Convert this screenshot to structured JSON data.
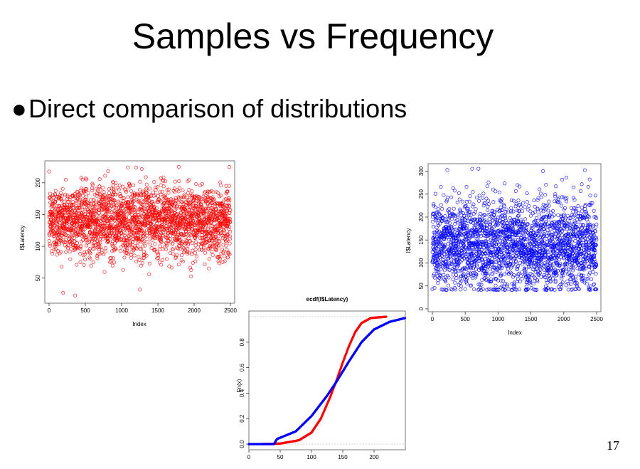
{
  "slide": {
    "title": "Samples vs Frequency",
    "bullet_symbol": "●",
    "bullet_text": "Direct comparison of distributions",
    "page_number": "17"
  },
  "chart_data": [
    {
      "type": "scatter",
      "series": [
        {
          "color": "#ff0000",
          "marker": "open-circle",
          "n": 2500,
          "center": 140,
          "spread": 28,
          "range": [
            20,
            225
          ]
        }
      ],
      "xlabel": "Index",
      "ylabel": "I$Latency",
      "xlim": [
        0,
        2500
      ],
      "ylim": [
        15,
        230
      ],
      "xticks": [
        "0",
        "500",
        "1000",
        "1500",
        "2000",
        "2500"
      ],
      "yticks": [
        "50",
        "100",
        "150",
        "200"
      ],
      "grid": false
    },
    {
      "type": "line",
      "title": "ecdf(I$Latency)",
      "xlabel": "",
      "ylabel": "Fn(x)",
      "xlim": [
        0,
        250
      ],
      "ylim": [
        0,
        1
      ],
      "xticks": [
        "0",
        "50",
        "100",
        "150",
        "200"
      ],
      "yticks": [
        "0.0",
        "0.2",
        "0.4",
        "0.6",
        "0.8"
      ],
      "series": [
        {
          "color": "#ff0000",
          "points": [
            [
              20,
              0
            ],
            [
              50,
              0.004
            ],
            [
              80,
              0.03
            ],
            [
              100,
              0.09
            ],
            [
              115,
              0.2
            ],
            [
              130,
              0.37
            ],
            [
              140,
              0.5
            ],
            [
              150,
              0.64
            ],
            [
              160,
              0.77
            ],
            [
              170,
              0.88
            ],
            [
              180,
              0.95
            ],
            [
              195,
              0.99
            ],
            [
              220,
              1.0
            ]
          ]
        },
        {
          "color": "#0000ff",
          "points": [
            [
              0,
              0.0
            ],
            [
              40,
              0.0
            ],
            [
              45,
              0.04
            ],
            [
              75,
              0.1
            ],
            [
              100,
              0.22
            ],
            [
              125,
              0.38
            ],
            [
              140,
              0.49
            ],
            [
              160,
              0.65
            ],
            [
              180,
              0.8
            ],
            [
              200,
              0.9
            ],
            [
              225,
              0.96
            ],
            [
              250,
              0.99
            ]
          ]
        }
      ]
    },
    {
      "type": "scatter",
      "series": [
        {
          "color": "#0000ff",
          "marker": "open-circle",
          "n": 2500,
          "center": 140,
          "spread": 50,
          "floor": 42,
          "range": [
            0,
            305
          ]
        }
      ],
      "xlabel": "Index",
      "ylabel": "I$Latency",
      "xlim": [
        0,
        2500
      ],
      "ylim": [
        0,
        310
      ],
      "xticks": [
        "0",
        "500",
        "1000",
        "1500",
        "2000",
        "2500"
      ],
      "yticks": [
        "0",
        "50",
        "100",
        "150",
        "200",
        "250",
        "300"
      ],
      "grid": false
    }
  ]
}
